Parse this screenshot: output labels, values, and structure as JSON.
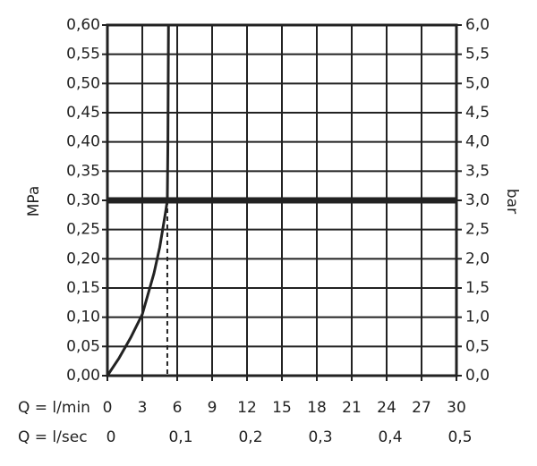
{
  "chart_data": {
    "type": "line",
    "y_label": "MPa",
    "y2_label": "bar",
    "x_label": "Q = l/min",
    "x2_label": "Q = l/sec",
    "x": [
      0,
      1,
      2,
      3,
      4,
      4.5,
      5,
      5.15,
      5.2,
      5.25
    ],
    "series": [
      {
        "color": "#222222",
        "values": [
          0,
          0.03,
          0.065,
          0.105,
          0.175,
          0.22,
          0.28,
          0.3,
          0.4,
          0.6
        ]
      }
    ],
    "xlim": [
      0,
      30
    ],
    "xticks": [
      0,
      3,
      6,
      9,
      12,
      15,
      18,
      21,
      24,
      27,
      30
    ],
    "x2lim": [
      0,
      0.5
    ],
    "x2ticks": [
      0,
      {
        "value": 0.1,
        "label": "0,1"
      },
      {
        "value": 0.2,
        "label": "0,2"
      },
      {
        "value": 0.3,
        "label": "0,3"
      },
      {
        "value": 0.4,
        "label": "0,4"
      },
      {
        "value": 0.5,
        "label": "0,5"
      }
    ],
    "ylim": [
      0,
      0.6
    ],
    "yticks": [
      {
        "value": 0,
        "label": "0,00"
      },
      {
        "value": 0.05,
        "label": "0,05"
      },
      {
        "value": 0.1,
        "label": "0,10"
      },
      {
        "value": 0.15,
        "label": "0,15"
      },
      {
        "value": 0.2,
        "label": "0,20"
      },
      {
        "value": 0.25,
        "label": "0,25"
      },
      {
        "value": 0.3,
        "label": "0,30"
      },
      {
        "value": 0.35,
        "label": "0,35"
      },
      {
        "value": 0.4,
        "label": "0,40"
      },
      {
        "value": 0.45,
        "label": "0,45"
      },
      {
        "value": 0.5,
        "label": "0,50"
      },
      {
        "value": 0.55,
        "label": "0,55"
      },
      {
        "value": 0.6,
        "label": "0,60"
      }
    ],
    "y2lim": [
      0,
      6
    ],
    "y2ticks": [
      {
        "value": 0,
        "label": "0,0"
      },
      {
        "value": 0.5,
        "label": "0,5"
      },
      {
        "value": 1,
        "label": "1,0"
      },
      {
        "value": 1.5,
        "label": "1,5"
      },
      {
        "value": 2,
        "label": "2,0"
      },
      {
        "value": 2.5,
        "label": "2,5"
      },
      {
        "value": 3,
        "label": "3,0"
      },
      {
        "value": 3.5,
        "label": "3,5"
      },
      {
        "value": 4,
        "label": "4,0"
      },
      {
        "value": 4.5,
        "label": "4,5"
      },
      {
        "value": 5,
        "label": "5,0"
      },
      {
        "value": 5.5,
        "label": "5,5"
      },
      {
        "value": 6,
        "label": "6,0"
      }
    ],
    "reference_y": 0.3,
    "reference_x": 5.15,
    "grid": true
  }
}
